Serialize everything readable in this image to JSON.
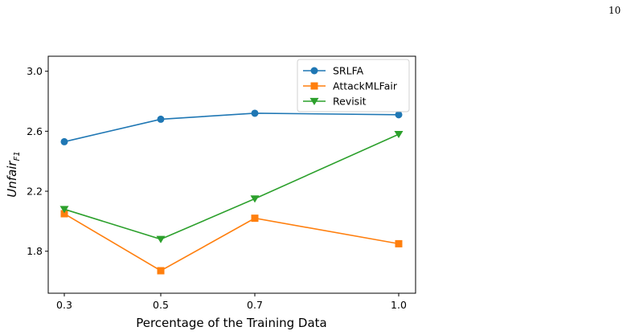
{
  "page": {
    "number": "10"
  },
  "chart_data": {
    "type": "line",
    "xlabel": "Percentage of the Training Data",
    "ylabel_main": "Unfair",
    "ylabel_sub": "F1",
    "x": [
      "0.3",
      "0.5",
      "0.7",
      "1.0"
    ],
    "yticks": [
      "1.8",
      "2.2",
      "2.6",
      "3.0"
    ],
    "yticks_values": [
      1.8,
      2.2,
      2.6,
      3.0
    ],
    "ylim": [
      1.52,
      3.1
    ],
    "legend_position": "top-right",
    "grid": false,
    "series": [
      {
        "name": "SRLFA",
        "values": [
          2.53,
          2.68,
          2.72,
          2.71
        ],
        "color": "#1f77b4",
        "marker": "circle"
      },
      {
        "name": "AttackMLFair",
        "values": [
          2.05,
          1.67,
          2.02,
          1.85
        ],
        "color": "#ff7f0e",
        "marker": "square"
      },
      {
        "name": "Revisit",
        "values": [
          2.08,
          1.88,
          2.15,
          2.58
        ],
        "color": "#2ca02c",
        "marker": "triangle-down"
      }
    ]
  }
}
